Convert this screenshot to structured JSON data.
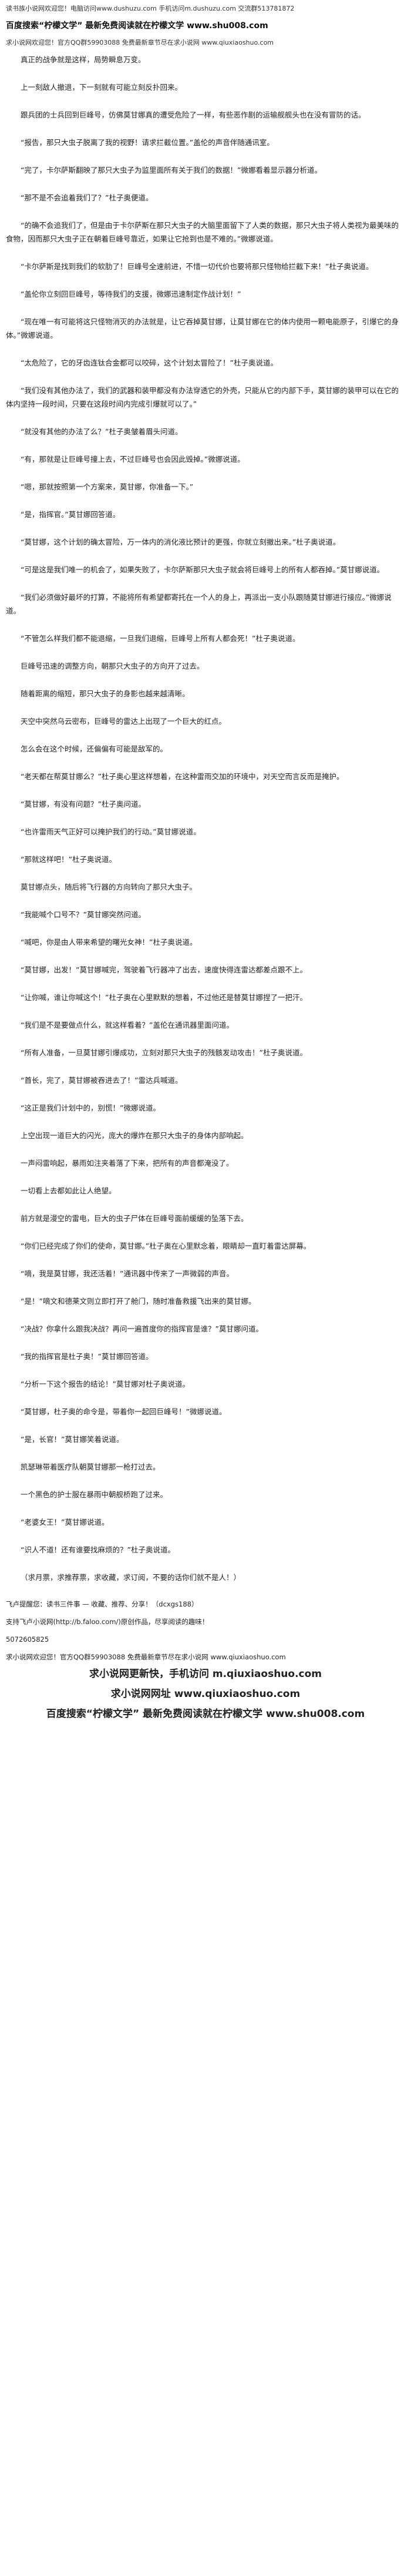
{
  "header": [
    "读书族小说网欢迎您！电脑访问www.dushuzu.com 手机访问m.dushuzu.com 交流群513781872",
    "百度搜索“柠檬文学” 最新免费阅读就在柠檬文学 www.shu008.com",
    "求小说网欢迎您！官方QQ群59903088 免费最新章节尽在求小说网 www.qiuxiaoshuo.com"
  ],
  "paragraphs": [
    "真正的战争就是这样，局势瞬息万变。",
    "上一刻敌人撤退，下一刻就有可能立刻反扑回来。",
    "跟兵团的士兵回到巨峰号，仿佛莫甘娜真的遭受危险了一样，有些恶作剧的运输舰舰头也在没有冒防的话。",
    "“报告，那只大虫子脱离了我的视野！请求拦截位置。”盖伦的声音伴随通讯室。",
    "“完了，卡尔萨斯翻映了那只大虫子为监里面所有关于我们的数据！”微娜看着显示器分析道。",
    "“那不是不会追着我们了？”杜子奥便道。",
    "“的确不会追我们了，但是由于卡尔萨斯在那只大虫子的大脑里面留下了人类的数据，那只大虫子将人类视为最美味的食物，因而那只大虫子正在朝着巨峰号靠近，如果让它抢到也是不难的。”微娜说道。",
    "“卡尔萨斯是找到我们的软肋了！巨峰号全速前进，不惜一切代价也要将那只怪物给拦截下来！”杜子奥说道。",
    "“盖伦你立刻回巨峰号，等待我们的支援，微娜迅速制定作战计划！”",
    "“现在唯一有可能将这只怪物消灭的办法就是，让它吞掉莫甘娜，让莫甘娜在它的体内使用一颗电能原子，引爆它的身体。”微娜说道。",
    "“太危险了，它的牙齿连钛合金都可以咬碎，这个计划太冒险了！”杜子奥说道。",
    "“我们没有其他办法了，我们的武器和装甲都没有办法穿透它的外壳，只能从它的内部下手，莫甘娜的装甲可以在它的体内坚持一段时间，只要在这段时间内完成引爆就可以了。”",
    "“就没有其他的办法了么？”杜子奥皱着眉头问道。",
    "“有，那就是让巨峰号撞上去，不过巨峰号也会因此毁掉。”微娜说道。",
    "“嗯，那就按照第一个方案来，莫甘娜，你准备一下。”",
    "“是，指挥官。”莫甘娜回答道。",
    "“莫甘娜，这个计划的确太冒险，万一体内的消化液比预计的更强，你就立刻撤出来。”杜子奥说道。",
    "“可是这是我们唯一的机会了，如果失败了，卡尔萨斯那只大虫子就会将巨峰号上的所有人都吞掉。”莫甘娜说道。",
    "“我们必须做好最坏的打算，不能将所有希望都寄托在一个人的身上，再派出一支小队跟随莫甘娜进行接应。”微娜说道。",
    "“不管怎么样我们都不能退缩，一旦我们退缩，巨峰号上所有人都会死！”杜子奥说道。",
    "巨峰号迅速的调整方向，朝那只大虫子的方向开了过去。",
    "随着距离的缩短，那只大虫子的身影也越来越清晰。",
    "天空中突然乌云密布，巨峰号的雷达上出现了一个巨大的红点。",
    "怎么会在这个时候，还偏偏有可能是敌军的。",
    "“老天都在帮莫甘娜么？”杜子奥心里这样想着，在这种雷雨交加的环境中，对天空而言反而是掩护。",
    "“莫甘娜，有没有问题？”杜子奥问道。",
    "“也许雷雨天气正好可以掩护我们的行动。”莫甘娜说道。",
    "“那就这样吧！”杜子奥说道。",
    "莫甘娜点头，随后将飞行器的方向转向了那只大虫子。",
    "“我能喊个口号不？”莫甘娜突然问道。",
    "“喊吧，你是由人带来希望的曙光女神！”杜子奥说道。",
    "“莫甘娜，出发！”莫甘娜喊完，驾驶着飞行器冲了出去，速度快得连雷达都差点跟不上。",
    "“让你喊，谁让你喊这个！”杜子奥在心里默默的想着，不过他还是替莫甘娜捏了一把汗。",
    "“我们是不是要做点什么，就这样看着？”盖伦在通讯器里面问道。",
    "“所有人准备，一旦莫甘娜引爆成功，立刻对那只大虫子的残骸发动攻击！”杜子奥说道。",
    "“首长，完了，莫甘娜被吞进去了！”雷达兵喊道。",
    "“这正是我们计划中的，别慌！”微娜说道。",
    "上空出现一道巨大的闪光，庞大的爆炸在那只大虫子的身体内部响起。",
    "一声闷雷响起，暴雨如注夹着落了下来，把所有的声音都淹没了。",
    "一切看上去都如此让人绝望。",
    "前方就是漫空的雷电，巨大的虫子尸体在巨峰号面前缓缓的坠落下去。",
    "“你们已经完成了你们的使命，莫甘娜。”杜子奥在心里默念着，眼睛却一直盯着雷达屏幕。",
    "“嘀，我是莫甘娜，我还活着！”通讯器中传来了一声微弱的声音。",
    "“是！”嘀文和德莱文则立即打开了舱门，随时准备救援飞出来的莫甘娜。",
    "“决战？你拿什么跟我决战？再问一遍首度你的指挥官是谁？”莫甘娜问道。",
    "“我的指挥官是杜子奥！”莫甘娜回答道。",
    "“分析一下这个报告的结论！”莫甘娜对杜子奥说道。",
    "“莫甘娜，杜子奥的命令是，带着你一起回巨峰号！”微娜说道。",
    "“是，长官！”莫甘娜笑着说道。",
    "凯瑟琳带着医疗队朝莫甘娜那一枪打过去。",
    "一个黑色的护士服在暴雨中朝舰桥跑了过来。",
    "“老婆女王！”莫甘娜说道。",
    "“识人不道！还有谁要找麻烦的？”杜子奥说道。",
    "（求月票，求推荐票，求收藏，求订阅，不要的话你们就不是人！）"
  ],
  "footer": [
    "飞卢提醒您：读书三件事 — 收藏、推荐、分享！（dcxgs188）",
    "支持飞卢小说网(http://b.faloo.com/)原创作品，尽享阅读的趣味！",
    "5072605825",
    "求小说网欢迎您！官方QQ群59903088 免费最新章节尽在求小说网 www.qiuxiaoshuo.com",
    "求小说网更新快，手机访问 m.qiuxiaoshuo.com",
    "求小说网网址 www.qiuxiaoshuo.com",
    "百度搜索“柠檬文学” 最新免费阅读就在柠檬文学 www.shu008.com"
  ]
}
